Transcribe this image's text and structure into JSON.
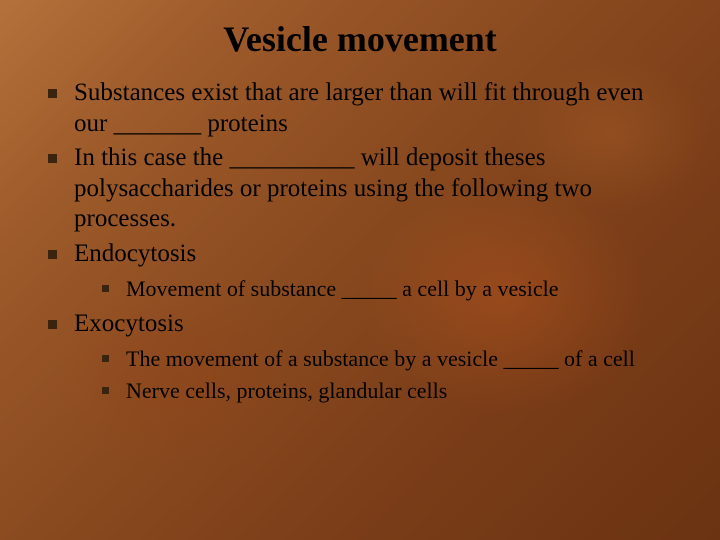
{
  "slide": {
    "title": "Vesicle movement",
    "title_fontsize": 36,
    "background_gradient": [
      "#b5713a",
      "#9d5a2a",
      "#8a4a1f",
      "#7a3d18",
      "#6b3312"
    ],
    "bullet_color": "#3a2410",
    "text_color": "#000000",
    "font_family": "Times New Roman",
    "bullets": [
      {
        "text": "Substances exist that are larger than will fit through even our _______ proteins",
        "fontsize": 25
      },
      {
        "text": "In this case the __________ will deposit theses polysaccharides or proteins using the following two processes.",
        "fontsize": 25
      },
      {
        "text": "Endocytosis",
        "fontsize": 25,
        "children": [
          {
            "text": "Movement of substance _____ a cell by a vesicle",
            "fontsize": 22
          }
        ]
      },
      {
        "text": "Exocytosis",
        "fontsize": 25,
        "children": [
          {
            "text": "The movement of a substance by a vesicle _____ of a cell",
            "fontsize": 22
          },
          {
            "text": "Nerve cells, proteins, glandular cells",
            "fontsize": 22
          }
        ]
      }
    ]
  }
}
